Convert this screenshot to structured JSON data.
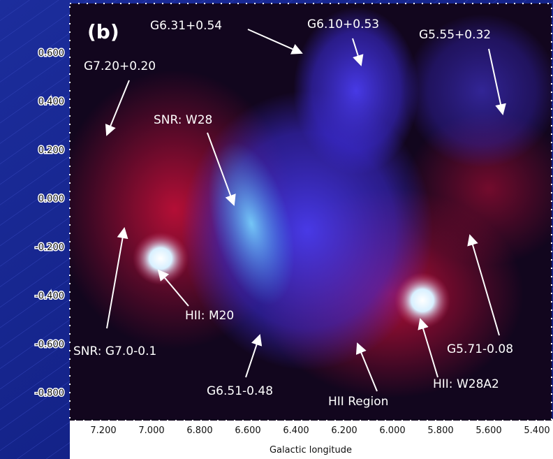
{
  "image": {
    "panel_label": "(b)",
    "y_ticks": [
      "0.600",
      "0.400",
      "0.200",
      "0.000",
      "-0.200",
      "-0.400",
      "-0.600",
      "-0.800"
    ],
    "x_ticks": [
      "7.200",
      "7.000",
      "6.800",
      "6.600",
      "6.400",
      "6.200",
      "6.000",
      "5.800",
      "5.600",
      "5.400"
    ],
    "x_label": "Galactic longitude",
    "annotations": [
      "G6.31+0.54",
      "G6.10+0.53",
      "G5.55+0.32",
      "G7.20+0.20",
      "SNR: W28",
      "SNR: G7.0-0.1",
      "HII: M20",
      "G6.51-0.48",
      "HII Region",
      "HII: W28A2",
      "G5.71-0.08"
    ]
  }
}
